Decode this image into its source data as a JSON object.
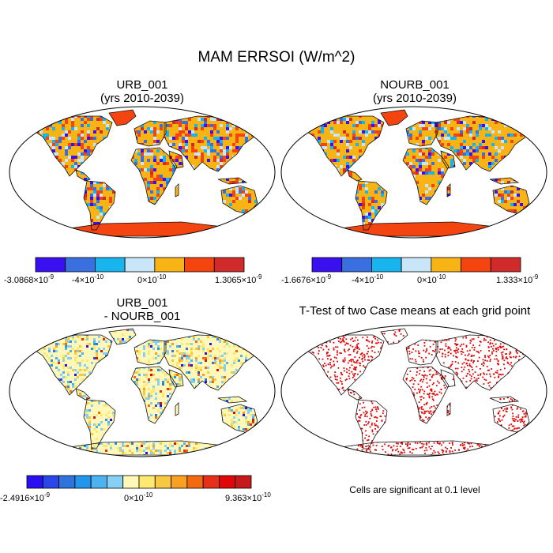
{
  "title": "MAM ERRSOI (W/m^2)",
  "panels": [
    {
      "id": "urb",
      "title_line1": "URB_001",
      "title_line2": "(yrs 2010-2039)",
      "colorbar": {
        "colors": [
          "#3a10f0",
          "#3a6fe0",
          "#17b4ee",
          "#c8e6f8",
          "#f8b414",
          "#f44410",
          "#d02a2a"
        ],
        "labels": [
          {
            "mantissa": "-3.0868",
            "exponent": "-9"
          },
          {
            "mantissa": "-4",
            "exponent": "-10"
          },
          {
            "mantissa": "0",
            "exponent": "-10"
          },
          {
            "mantissa": "1.3065",
            "exponent": "-9"
          }
        ]
      }
    },
    {
      "id": "nourb",
      "title_line1": "NOURB_001",
      "title_line2": "(yrs 2010-2039)",
      "colorbar": {
        "colors": [
          "#3a10f0",
          "#3a6fe0",
          "#17b4ee",
          "#c8e6f8",
          "#f8b414",
          "#f44410",
          "#d02a2a"
        ],
        "labels": [
          {
            "mantissa": "-1.6676",
            "exponent": "-9"
          },
          {
            "mantissa": "-4",
            "exponent": "-10"
          },
          {
            "mantissa": "0",
            "exponent": "-10"
          },
          {
            "mantissa": "1.333",
            "exponent": "-9"
          }
        ]
      }
    },
    {
      "id": "diff",
      "title_line1": "URB_001",
      "title_line2": "- NOURB_001",
      "colorbar": {
        "colors": [
          "#2a10f0",
          "#2a45e8",
          "#2f73dd",
          "#2495ec",
          "#4db3f0",
          "#86d0f5",
          "#fff8b8",
          "#fde870",
          "#f8c840",
          "#f8a020",
          "#f46a10",
          "#e63018",
          "#e00808",
          "#c51a1a"
        ],
        "labels": [
          {
            "mantissa": "-2.4916",
            "exponent": "-9"
          },
          {
            "mantissa": "0",
            "exponent": "-10"
          },
          {
            "mantissa": "9.363",
            "exponent": "-10"
          }
        ]
      }
    },
    {
      "id": "ttest",
      "title_line1": "T-Test of two Case means at each grid point",
      "note": "Cells are significant at 0.1 level"
    }
  ]
}
